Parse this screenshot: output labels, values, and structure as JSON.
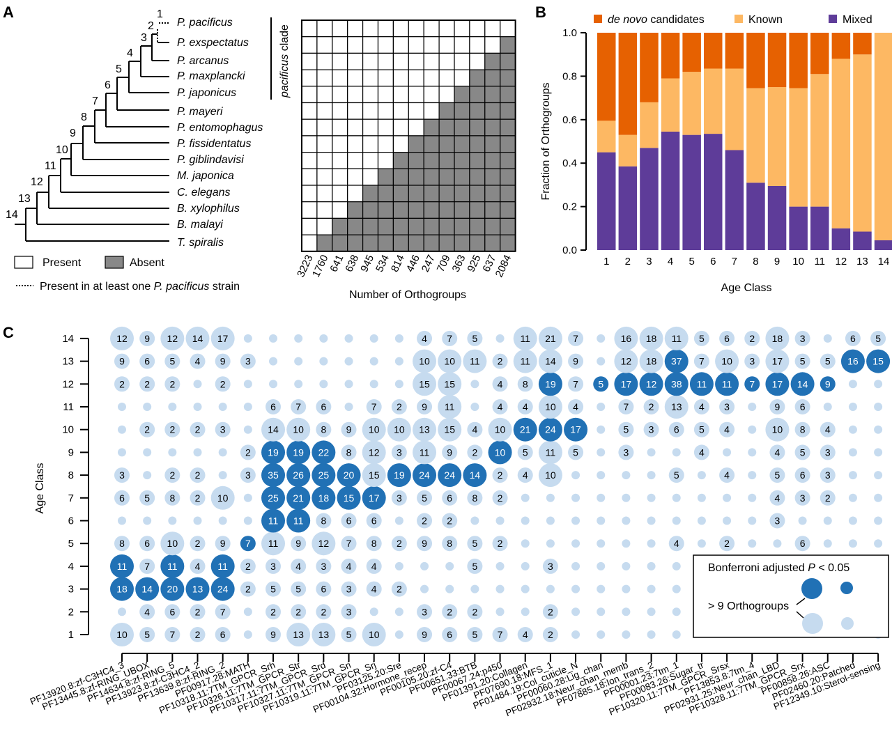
{
  "panels": {
    "A": {
      "letter": "A",
      "species": [
        "P. pacificus",
        "P. exspectatus",
        "P. arcanus",
        "P. maxplancki",
        "P. japonicus",
        "P. mayeri",
        "P. entomophagus",
        "P. fissidentatus",
        "P. giblindavisi",
        "M. japonica",
        "C. elegans",
        "B. xylophilus",
        "B. malayi",
        "T. spiralis"
      ],
      "node_labels": [
        "1",
        "2",
        "3",
        "4",
        "5",
        "6",
        "7",
        "8",
        "9",
        "10",
        "11",
        "12",
        "13",
        "14"
      ],
      "clade_label": "pacificus clade",
      "legend": {
        "present": "Present",
        "absent": "Absent",
        "dotted_prefix": "Present in at least one ",
        "dotted_species": "P. pacificus",
        "dotted_suffix": " strain"
      },
      "xlabel": "Number of Orthogroups"
    },
    "B": {
      "letter": "B"
    },
    "C": {
      "letter": "C"
    }
  },
  "colors": {
    "de_novo": "#E66101",
    "known": "#FDB863",
    "mixed": "#5E3C99",
    "sig_dot": "#2171B5",
    "nonsig_dot": "#C6DBEF",
    "absent_cell": "#888888"
  },
  "chart_data": [
    {
      "type": "heatmap",
      "panel": "A",
      "title": "",
      "xlabel": "Number of Orthogroups",
      "rows": [
        "P. pacificus",
        "P. exspectatus",
        "P. arcanus",
        "P. maxplancki",
        "P. japonicus",
        "P. mayeri",
        "P. entomophagus",
        "P. fissidentatus",
        "P. giblindavisi",
        "M. japonica",
        "C. elegans",
        "B. xylophilus",
        "B. malayi",
        "T. spiralis"
      ],
      "columns": [
        "3223",
        "1760",
        "641",
        "638",
        "945",
        "534",
        "814",
        "446",
        "247",
        "709",
        "363",
        "925",
        "637",
        "2084"
      ],
      "rule": "cell (row r, column c) is Absent when r + c > 13 (0-indexed), otherwise Present",
      "values_legend": {
        "present": "Present",
        "absent": "Absent"
      }
    },
    {
      "type": "bar",
      "stacked": true,
      "panel": "B",
      "title": "",
      "xlabel": "Age Class",
      "ylabel": "Fraction of Orthogroups",
      "ylim": [
        0,
        1.0
      ],
      "yticks": [
        "0.0",
        "0.2",
        "0.4",
        "0.6",
        "0.8",
        "1.0"
      ],
      "categories": [
        "1",
        "2",
        "3",
        "4",
        "5",
        "6",
        "7",
        "8",
        "9",
        "10",
        "11",
        "12",
        "13",
        "14"
      ],
      "legend_position": "top",
      "series": [
        {
          "name": "Mixed",
          "values": [
            0.45,
            0.385,
            0.47,
            0.545,
            0.53,
            0.535,
            0.46,
            0.31,
            0.295,
            0.2,
            0.2,
            0.1,
            0.085,
            0.045
          ]
        },
        {
          "name": "Known",
          "values": [
            0.145,
            0.145,
            0.21,
            0.245,
            0.29,
            0.3,
            0.375,
            0.435,
            0.455,
            0.545,
            0.61,
            0.78,
            0.815,
            0.955
          ]
        },
        {
          "name": "de novo candidates",
          "values": [
            0.405,
            0.47,
            0.32,
            0.21,
            0.18,
            0.165,
            0.165,
            0.255,
            0.25,
            0.255,
            0.19,
            0.12,
            0.1,
            0.0
          ]
        }
      ],
      "legend": [
        {
          "italic": "de novo",
          "text": " candidates"
        },
        {
          "italic": "",
          "text": "Known"
        },
        {
          "italic": "",
          "text": "Mixed"
        }
      ]
    },
    {
      "type": "scatter",
      "subtype": "dot-matrix",
      "panel": "C",
      "title": "",
      "ylabel": "Age Class",
      "yticks": [
        "1",
        "2",
        "3",
        "4",
        "5",
        "6",
        "7",
        "8",
        "9",
        "10",
        "11",
        "12",
        "13",
        "14"
      ],
      "categories": [
        "PF13920.8:zf-C3HC4_3",
        "PF13445.8:zf-RING_UBOX",
        "PF14634.8:zf-RING_5",
        "PF13923.8:zf-C3HC4_2",
        "PF13639.8:zf-RING_2",
        "PF00917.28:MATH",
        "PF10318.11:7TM_GPCR_Srh",
        "PF10326.11:7TM_GPCR_Str",
        "PF10317.11:7TM_GPCR_Srd",
        "PF10327.11:7TM_GPCR_Sri",
        "PF10319.11:7TM_GPCR_Srj",
        "PF03125.20:Sre",
        "PF00104.32:Hormone_recep",
        "PF00105.20:zf-C4",
        "PF00651.33:BTB",
        "PF00067.24:p450",
        "PF01391.20:Collagen",
        "PF07690.18:MFS_1",
        "PF01484.19:Col_cuticle_N",
        "PF00060.28:Lig_chan",
        "PF02932.18:Neur_chan_memb",
        "PF07885.18:Ion_trans_2",
        "PF00001.23:7tm_1",
        "PF00083.26:Sugar_tr",
        "PF10320.11:7TM_GPCR_Srsx",
        "PF13853.8:7tm_4",
        "PF02931.25:Neur_chan_LBD",
        "PF10328.11:7TM_GPCR_Srx",
        "PF00858.26:ASC",
        "PF02460.20:Patched",
        "PF12349.10:Sterol-sensing"
      ],
      "note": "counts[row] listed for age classes 14 down to 1; 0 = unlabeled small dot (0 or 1 orthogroups); hidden = covered by legend",
      "counts": {
        "14": [
          12,
          9,
          12,
          14,
          17,
          0,
          0,
          0,
          0,
          0,
          0,
          0,
          4,
          7,
          5,
          0,
          11,
          21,
          7,
          0,
          16,
          18,
          11,
          5,
          6,
          2,
          18,
          3,
          0,
          6,
          5
        ],
        "13": [
          9,
          6,
          5,
          4,
          9,
          3,
          0,
          0,
          0,
          0,
          0,
          0,
          10,
          10,
          11,
          2,
          11,
          14,
          9,
          0,
          12,
          18,
          37,
          7,
          10,
          3,
          17,
          5,
          5,
          16,
          15
        ],
        "12": [
          2,
          2,
          2,
          0,
          2,
          0,
          0,
          0,
          0,
          0,
          0,
          0,
          15,
          15,
          0,
          4,
          8,
          19,
          7,
          5,
          17,
          12,
          38,
          11,
          11,
          7,
          17,
          14,
          9,
          0,
          0
        ],
        "11": [
          0,
          0,
          0,
          0,
          0,
          0,
          6,
          7,
          6,
          0,
          7,
          2,
          9,
          11,
          0,
          4,
          4,
          10,
          4,
          0,
          7,
          2,
          13,
          4,
          3,
          0,
          9,
          6,
          0,
          0,
          0
        ],
        "10": [
          0,
          2,
          2,
          2,
          3,
          0,
          14,
          10,
          8,
          9,
          10,
          10,
          13,
          15,
          4,
          10,
          21,
          24,
          17,
          0,
          5,
          3,
          6,
          5,
          4,
          0,
          10,
          8,
          4,
          0,
          0
        ],
        "9": [
          0,
          0,
          0,
          0,
          0,
          2,
          19,
          19,
          22,
          8,
          12,
          3,
          11,
          9,
          2,
          10,
          5,
          11,
          5,
          0,
          3,
          0,
          0,
          4,
          0,
          0,
          4,
          5,
          3,
          0,
          0
        ],
        "8": [
          3,
          0,
          2,
          2,
          0,
          3,
          35,
          26,
          25,
          20,
          15,
          19,
          24,
          24,
          14,
          2,
          4,
          10,
          0,
          0,
          0,
          0,
          5,
          0,
          4,
          0,
          5,
          6,
          3,
          0,
          0
        ],
        "7": [
          6,
          5,
          8,
          2,
          10,
          0,
          25,
          21,
          18,
          15,
          17,
          3,
          5,
          6,
          8,
          2,
          0,
          0,
          0,
          0,
          0,
          0,
          0,
          0,
          0,
          0,
          4,
          3,
          2,
          0,
          0
        ],
        "6": [
          0,
          0,
          0,
          0,
          0,
          0,
          11,
          11,
          8,
          6,
          6,
          0,
          2,
          2,
          0,
          0,
          0,
          0,
          0,
          0,
          0,
          0,
          0,
          0,
          0,
          0,
          3,
          0,
          0,
          0,
          0
        ],
        "5": [
          8,
          6,
          10,
          2,
          9,
          7,
          11,
          9,
          12,
          7,
          8,
          2,
          9,
          8,
          5,
          2,
          0,
          0,
          0,
          0,
          0,
          0,
          4,
          0,
          2,
          0,
          0,
          6,
          0,
          0,
          0
        ],
        "4": [
          11,
          7,
          11,
          4,
          11,
          2,
          3,
          4,
          3,
          4,
          4,
          0,
          0,
          0,
          5,
          0,
          0,
          3,
          0,
          0,
          0,
          0,
          0,
          "hidden",
          "hidden",
          "hidden",
          "hidden",
          "hidden",
          "hidden",
          "hidden",
          0
        ],
        "3": [
          18,
          14,
          20,
          13,
          24,
          2,
          5,
          5,
          6,
          3,
          4,
          2,
          0,
          0,
          0,
          0,
          0,
          0,
          0,
          0,
          0,
          0,
          0,
          "hidden",
          "hidden",
          "hidden",
          "hidden",
          "hidden",
          "hidden",
          "hidden",
          0
        ],
        "2": [
          0,
          4,
          6,
          2,
          7,
          0,
          2,
          2,
          2,
          3,
          0,
          0,
          3,
          2,
          2,
          0,
          0,
          2,
          0,
          0,
          0,
          0,
          0,
          "hidden",
          "hidden",
          "hidden",
          "hidden",
          "hidden",
          "hidden",
          "hidden",
          0
        ],
        "1": [
          10,
          5,
          7,
          2,
          6,
          0,
          9,
          13,
          13,
          5,
          10,
          0,
          9,
          6,
          5,
          7,
          4,
          2,
          0,
          0,
          0,
          0,
          0,
          "hidden",
          "hidden",
          "hidden",
          "hidden",
          "hidden",
          "hidden",
          "hidden",
          0
        ]
      },
      "significant": {
        "14": [],
        "13": [
          23,
          30,
          31
        ],
        "12": [
          18,
          20,
          21,
          22,
          23,
          24,
          25,
          26,
          27,
          28,
          29
        ],
        "11": [],
        "10": [
          17,
          18,
          19
        ],
        "9": [
          7,
          8,
          9,
          16
        ],
        "8": [
          7,
          8,
          9,
          10,
          12,
          13,
          14,
          15
        ],
        "7": [
          7,
          8,
          9,
          10,
          11
        ],
        "6": [
          7,
          8
        ],
        "5": [
          6
        ],
        "4": [
          1,
          3,
          5
        ],
        "3": [
          1,
          2,
          3,
          4,
          5
        ],
        "2": [],
        "1": []
      },
      "legend": {
        "title_prefix": "Bonferroni adjusted ",
        "title_italic": "P",
        "title_suffix": " < 0.05",
        "size_label": "> 9 Orthogroups"
      }
    }
  ]
}
